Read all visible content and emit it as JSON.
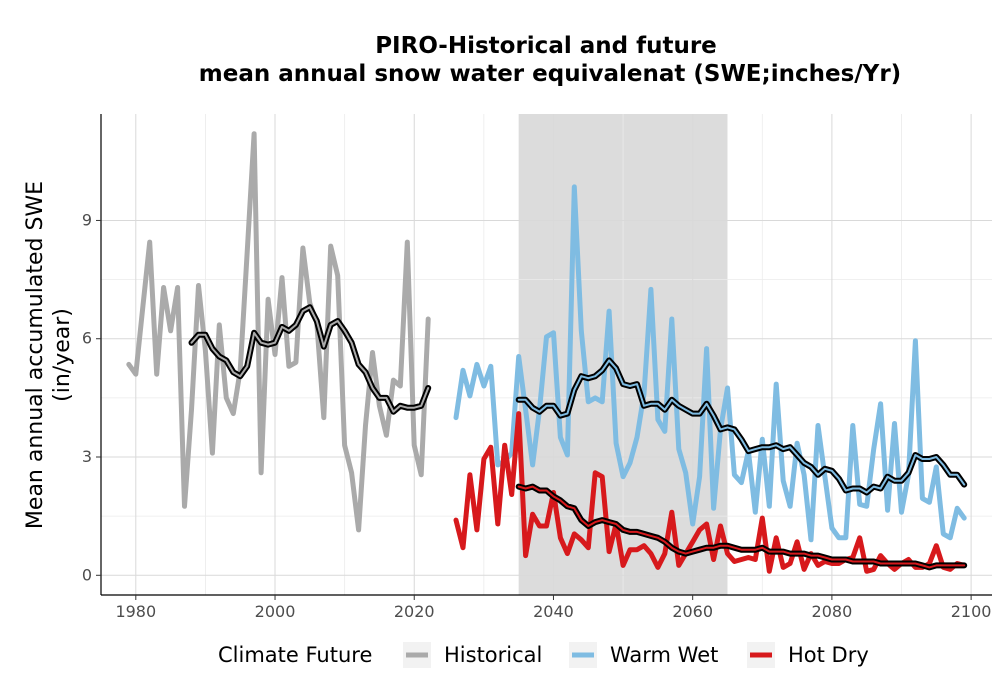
{
  "chart_data": {
    "type": "line",
    "title": [
      "PIRO-Historical and future",
      "mean annual snow water equivalenat (SWE;inches/Yr)"
    ],
    "ylabel": [
      "Mean annual accumulated SWE",
      "(in/year)"
    ],
    "xlabel": "",
    "xlim": [
      1975,
      2103
    ],
    "ylim": [
      -0.5,
      11.7
    ],
    "xticks": [
      1980,
      2000,
      2020,
      2040,
      2060,
      2080,
      2100
    ],
    "yticks": [
      0,
      3,
      6,
      9
    ],
    "grid": true,
    "shaded_region": {
      "x_start": 2035,
      "x_end": 2065,
      "color": "#dcdcdc"
    },
    "legend": {
      "title": "Climate Future",
      "position": "bottom",
      "entries": [
        {
          "label": "Historical",
          "color": "#aaaaaa"
        },
        {
          "label": "Warm Wet",
          "color": "#7fbce2"
        },
        {
          "label": "Hot Dry",
          "color": "#d7191c"
        }
      ]
    },
    "series": [
      {
        "name": "Historical",
        "color": "#aaaaaa",
        "x": [
          1979,
          1980,
          1981,
          1982,
          1983,
          1984,
          1985,
          1986,
          1987,
          1988,
          1989,
          1990,
          1991,
          1992,
          1993,
          1994,
          1995,
          1996,
          1997,
          1998,
          1999,
          2000,
          2001,
          2002,
          2003,
          2004,
          2005,
          2006,
          2007,
          2008,
          2009,
          2010,
          2011,
          2012,
          2013,
          2014,
          2015,
          2016,
          2017,
          2018,
          2019,
          2020,
          2021,
          2022
        ],
        "values": [
          5.35,
          5.1,
          6.8,
          8.45,
          5.1,
          7.3,
          6.2,
          7.3,
          1.75,
          4.2,
          7.35,
          5.7,
          3.1,
          6.35,
          4.5,
          4.1,
          5.2,
          8.2,
          11.2,
          2.6,
          7.0,
          5.6,
          7.55,
          5.3,
          5.4,
          8.3,
          6.9,
          6.4,
          4.0,
          8.35,
          7.6,
          3.3,
          2.6,
          1.15,
          3.8,
          5.65,
          4.3,
          3.55,
          4.95,
          4.8,
          8.45,
          3.3,
          2.55,
          6.5
        ]
      },
      {
        "name": "Historical Avg",
        "color": "#000000",
        "smoothed": true,
        "x": [
          1988,
          1989,
          1990,
          1991,
          1992,
          1993,
          1994,
          1995,
          1996,
          1997,
          1998,
          1999,
          2000,
          2001,
          2002,
          2003,
          2004,
          2005,
          2006,
          2007,
          2008,
          2009,
          2010,
          2011,
          2012,
          2013,
          2014,
          2015,
          2016,
          2017,
          2018,
          2019,
          2020,
          2021,
          2022
        ],
        "values": [
          5.9,
          6.1,
          6.1,
          5.75,
          5.55,
          5.45,
          5.15,
          5.05,
          5.3,
          6.15,
          5.9,
          5.85,
          5.9,
          6.3,
          6.2,
          6.35,
          6.7,
          6.8,
          6.45,
          5.8,
          6.35,
          6.45,
          6.2,
          5.9,
          5.35,
          5.15,
          4.75,
          4.5,
          4.5,
          4.15,
          4.3,
          4.25,
          4.25,
          4.3,
          4.75
        ]
      },
      {
        "name": "Warm Wet",
        "color": "#7fbce2",
        "x": [
          2026,
          2027,
          2028,
          2029,
          2030,
          2031,
          2032,
          2033,
          2034,
          2035,
          2036,
          2037,
          2038,
          2039,
          2040,
          2041,
          2042,
          2043,
          2044,
          2045,
          2046,
          2047,
          2048,
          2049,
          2050,
          2051,
          2052,
          2053,
          2054,
          2055,
          2056,
          2057,
          2058,
          2059,
          2060,
          2061,
          2062,
          2063,
          2064,
          2065,
          2066,
          2067,
          2068,
          2069,
          2070,
          2071,
          2072,
          2073,
          2074,
          2075,
          2076,
          2077,
          2078,
          2079,
          2080,
          2081,
          2082,
          2083,
          2084,
          2085,
          2086,
          2087,
          2088,
          2089,
          2090,
          2091,
          2092,
          2093,
          2094,
          2095,
          2096,
          2097,
          2098,
          2099
        ],
        "values": [
          4.0,
          5.2,
          4.55,
          5.35,
          4.8,
          5.3,
          2.8,
          2.9,
          3.1,
          5.55,
          4.2,
          2.8,
          4.2,
          6.05,
          6.15,
          3.5,
          3.05,
          9.85,
          6.2,
          4.4,
          4.5,
          4.4,
          6.7,
          3.35,
          2.5,
          2.85,
          3.5,
          4.6,
          7.25,
          3.95,
          3.65,
          6.5,
          3.2,
          2.6,
          1.3,
          2.5,
          5.75,
          1.7,
          3.7,
          4.75,
          2.55,
          2.35,
          3.15,
          1.6,
          3.45,
          1.75,
          4.85,
          2.4,
          1.75,
          3.35,
          2.55,
          0.9,
          3.8,
          2.5,
          1.2,
          0.95,
          0.95,
          3.8,
          1.8,
          1.75,
          3.2,
          4.35,
          1.65,
          3.85,
          1.6,
          2.55,
          5.95,
          1.95,
          1.85,
          2.75,
          1.05,
          0.95,
          1.7,
          1.45
        ]
      },
      {
        "name": "Warm Wet Avg",
        "color": "#000000",
        "smoothed": true,
        "x": [
          2035,
          2036,
          2037,
          2038,
          2039,
          2040,
          2041,
          2042,
          2043,
          2044,
          2045,
          2046,
          2047,
          2048,
          2049,
          2050,
          2051,
          2052,
          2053,
          2054,
          2055,
          2056,
          2057,
          2058,
          2059,
          2060,
          2061,
          2062,
          2063,
          2064,
          2065,
          2066,
          2067,
          2068,
          2069,
          2070,
          2071,
          2072,
          2073,
          2074,
          2075,
          2076,
          2077,
          2078,
          2079,
          2080,
          2081,
          2082,
          2083,
          2084,
          2085,
          2086,
          2087,
          2088,
          2089,
          2090,
          2091,
          2092,
          2093,
          2094,
          2095,
          2096,
          2097,
          2098,
          2099
        ],
        "values": [
          4.45,
          4.45,
          4.25,
          4.15,
          4.3,
          4.3,
          4.05,
          4.1,
          4.7,
          5.05,
          5.0,
          5.05,
          5.2,
          5.45,
          5.25,
          4.85,
          4.8,
          4.85,
          4.3,
          4.35,
          4.35,
          4.2,
          4.45,
          4.3,
          4.2,
          4.1,
          4.1,
          4.35,
          4.05,
          3.7,
          3.75,
          3.7,
          3.45,
          3.15,
          3.2,
          3.25,
          3.25,
          3.3,
          3.2,
          3.25,
          3.05,
          2.85,
          2.75,
          2.55,
          2.7,
          2.65,
          2.45,
          2.15,
          2.2,
          2.2,
          2.1,
          2.25,
          2.2,
          2.5,
          2.4,
          2.4,
          2.6,
          3.05,
          2.95,
          2.95,
          3.0,
          2.8,
          2.55,
          2.55,
          2.3
        ]
      },
      {
        "name": "Hot Dry",
        "color": "#d7191c",
        "x": [
          2026,
          2027,
          2028,
          2029,
          2030,
          2031,
          2032,
          2033,
          2034,
          2035,
          2036,
          2037,
          2038,
          2039,
          2040,
          2041,
          2042,
          2043,
          2044,
          2045,
          2046,
          2047,
          2048,
          2049,
          2050,
          2051,
          2052,
          2053,
          2054,
          2055,
          2056,
          2057,
          2058,
          2059,
          2060,
          2061,
          2062,
          2063,
          2064,
          2065,
          2066,
          2067,
          2068,
          2069,
          2070,
          2071,
          2072,
          2073,
          2074,
          2075,
          2076,
          2077,
          2078,
          2079,
          2080,
          2081,
          2082,
          2083,
          2084,
          2085,
          2086,
          2087,
          2088,
          2089,
          2090,
          2091,
          2092,
          2093,
          2094,
          2095,
          2096,
          2097,
          2098,
          2099
        ],
        "values": [
          1.4,
          0.7,
          2.55,
          1.15,
          2.95,
          3.25,
          1.3,
          3.3,
          2.05,
          4.1,
          0.5,
          1.55,
          1.25,
          1.25,
          2.1,
          0.95,
          0.55,
          1.05,
          0.9,
          0.7,
          2.6,
          2.5,
          0.6,
          1.3,
          0.25,
          0.65,
          0.65,
          0.75,
          0.55,
          0.2,
          0.55,
          1.6,
          0.25,
          0.55,
          0.85,
          1.15,
          1.3,
          0.4,
          1.25,
          0.55,
          0.35,
          0.4,
          0.45,
          0.4,
          1.45,
          0.1,
          0.95,
          0.2,
          0.3,
          0.85,
          0.15,
          0.55,
          0.25,
          0.35,
          0.3,
          0.3,
          0.4,
          0.45,
          0.95,
          0.1,
          0.15,
          0.5,
          0.3,
          0.15,
          0.3,
          0.4,
          0.2,
          0.2,
          0.3,
          0.75,
          0.2,
          0.15,
          0.3,
          0.25
        ]
      },
      {
        "name": "Hot Dry Avg",
        "color": "#000000",
        "smoothed": true,
        "x": [
          2035,
          2036,
          2037,
          2038,
          2039,
          2040,
          2041,
          2042,
          2043,
          2044,
          2045,
          2046,
          2047,
          2048,
          2049,
          2050,
          2051,
          2052,
          2053,
          2054,
          2055,
          2056,
          2057,
          2058,
          2059,
          2060,
          2061,
          2062,
          2063,
          2064,
          2065,
          2066,
          2067,
          2068,
          2069,
          2070,
          2071,
          2072,
          2073,
          2074,
          2075,
          2076,
          2077,
          2078,
          2079,
          2080,
          2081,
          2082,
          2083,
          2084,
          2085,
          2086,
          2087,
          2088,
          2089,
          2090,
          2091,
          2092,
          2093,
          2094,
          2095,
          2096,
          2097,
          2098,
          2099
        ],
        "values": [
          2.25,
          2.2,
          2.25,
          2.15,
          2.15,
          2.0,
          1.9,
          1.75,
          1.7,
          1.4,
          1.25,
          1.35,
          1.4,
          1.35,
          1.3,
          1.15,
          1.1,
          1.1,
          1.05,
          1.0,
          0.95,
          0.85,
          0.7,
          0.6,
          0.55,
          0.6,
          0.65,
          0.7,
          0.7,
          0.75,
          0.75,
          0.7,
          0.65,
          0.65,
          0.65,
          0.7,
          0.6,
          0.6,
          0.6,
          0.55,
          0.55,
          0.55,
          0.5,
          0.5,
          0.45,
          0.4,
          0.4,
          0.4,
          0.35,
          0.35,
          0.35,
          0.35,
          0.3,
          0.3,
          0.3,
          0.3,
          0.3,
          0.3,
          0.25,
          0.2,
          0.25,
          0.25,
          0.25,
          0.25,
          0.25
        ]
      }
    ]
  }
}
